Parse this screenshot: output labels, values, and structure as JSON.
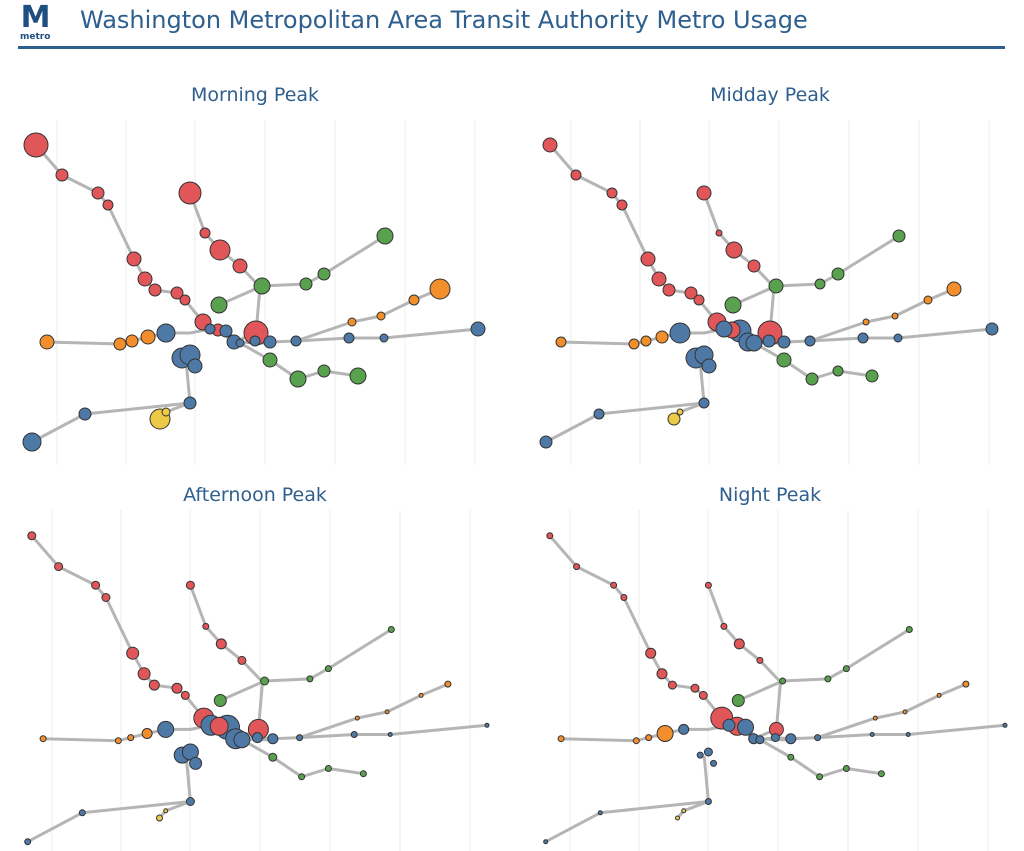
{
  "header": {
    "logo_letter": "M",
    "logo_word": "metro",
    "title": "Washington Metropolitan Area Transit Authority Metro Usage"
  },
  "colors": {
    "red": "#e15759",
    "orange": "#f28e2b",
    "green": "#59a14f",
    "blue": "#4e79a7",
    "yellow": "#edc948",
    "line": "#b5b5b5",
    "title": "#2e5f8e"
  },
  "panels": [
    {
      "id": "morning",
      "title": "Morning Peak"
    },
    {
      "id": "midday",
      "title": "Midday Peak"
    },
    {
      "id": "afternoon",
      "title": "Afternoon Peak"
    },
    {
      "id": "night",
      "title": "Night Peak"
    }
  ]
}
